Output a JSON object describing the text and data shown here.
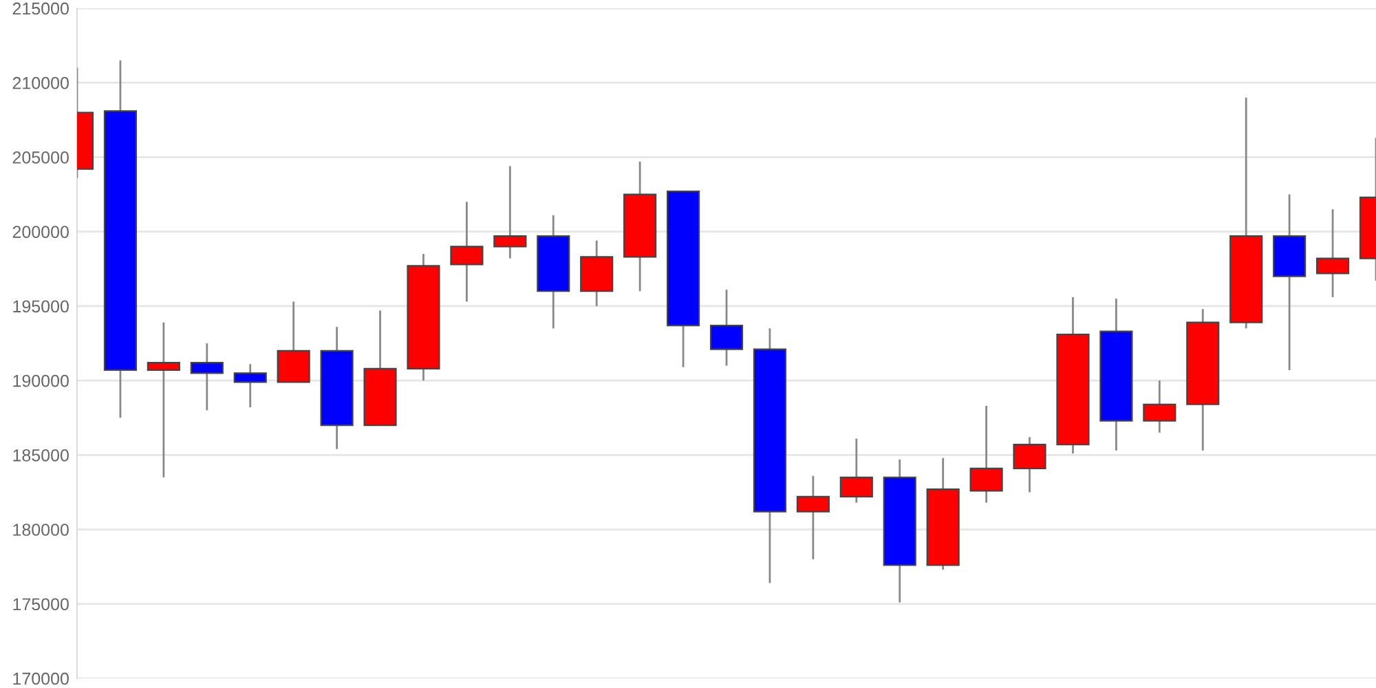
{
  "chart_data": {
    "type": "candlestick",
    "categories": [
      null,
      null,
      null,
      null,
      null,
      null,
      null,
      null,
      null,
      null,
      null,
      null,
      null,
      null,
      null,
      null,
      null,
      null,
      null,
      null,
      null,
      null,
      null,
      null,
      null,
      null,
      null,
      null,
      null,
      null,
      null
    ],
    "ohlc": [
      [
        204200,
        211000,
        203600,
        208000
      ],
      [
        208100,
        211500,
        187500,
        190700
      ],
      [
        190700,
        193900,
        183500,
        191200
      ],
      [
        191200,
        192500,
        188000,
        190500
      ],
      [
        190500,
        191100,
        188200,
        189900
      ],
      [
        189900,
        195300,
        189900,
        192000
      ],
      [
        192000,
        193600,
        185400,
        187000
      ],
      [
        187000,
        194700,
        187000,
        190800
      ],
      [
        190800,
        198500,
        190000,
        197700
      ],
      [
        197800,
        202000,
        195300,
        199000
      ],
      [
        199000,
        204400,
        198200,
        199700
      ],
      [
        199700,
        201100,
        193500,
        196000
      ],
      [
        196000,
        199400,
        195000,
        198300
      ],
      [
        198300,
        204700,
        196000,
        202500
      ],
      [
        202700,
        202700,
        190900,
        193700
      ],
      [
        193700,
        196100,
        191000,
        192100
      ],
      [
        192100,
        193500,
        176400,
        181200
      ],
      [
        181200,
        183600,
        178000,
        182200
      ],
      [
        182200,
        186100,
        181800,
        183500
      ],
      [
        183500,
        184700,
        175100,
        177600
      ],
      [
        177600,
        184800,
        177300,
        182700
      ],
      [
        182600,
        188300,
        181800,
        184100
      ],
      [
        184100,
        186200,
        182500,
        185700
      ],
      [
        185700,
        195600,
        185100,
        193100
      ],
      [
        193300,
        195500,
        185300,
        187300
      ],
      [
        187300,
        190000,
        186500,
        188400
      ],
      [
        188400,
        194800,
        185300,
        193900
      ],
      [
        193900,
        209000,
        193500,
        199700
      ],
      [
        199700,
        202500,
        190700,
        197000
      ],
      [
        197200,
        201500,
        195600,
        198200
      ],
      [
        198200,
        206300,
        196700,
        202300
      ]
    ],
    "colors": [
      "#ff0000",
      "#0000ff",
      "#ff0000",
      "#0000ff",
      "#0000ff",
      "#ff0000",
      "#0000ff",
      "#ff0000",
      "#ff0000",
      "#ff0000",
      "#ff0000",
      "#0000ff",
      "#ff0000",
      "#ff0000",
      "#0000ff",
      "#0000ff",
      "#0000ff",
      "#ff0000",
      "#ff0000",
      "#0000ff",
      "#ff0000",
      "#ff0000",
      "#ff0000",
      "#ff0000",
      "#0000ff",
      "#ff0000",
      "#ff0000",
      "#ff0000",
      "#0000ff",
      "#ff0000",
      "#ff0000"
    ],
    "ylim": [
      170000,
      215000
    ],
    "yticks": [
      170000,
      175000,
      180000,
      185000,
      190000,
      195000,
      200000,
      205000,
      210000,
      215000
    ],
    "grid": "y",
    "tick_labels": "y"
  }
}
